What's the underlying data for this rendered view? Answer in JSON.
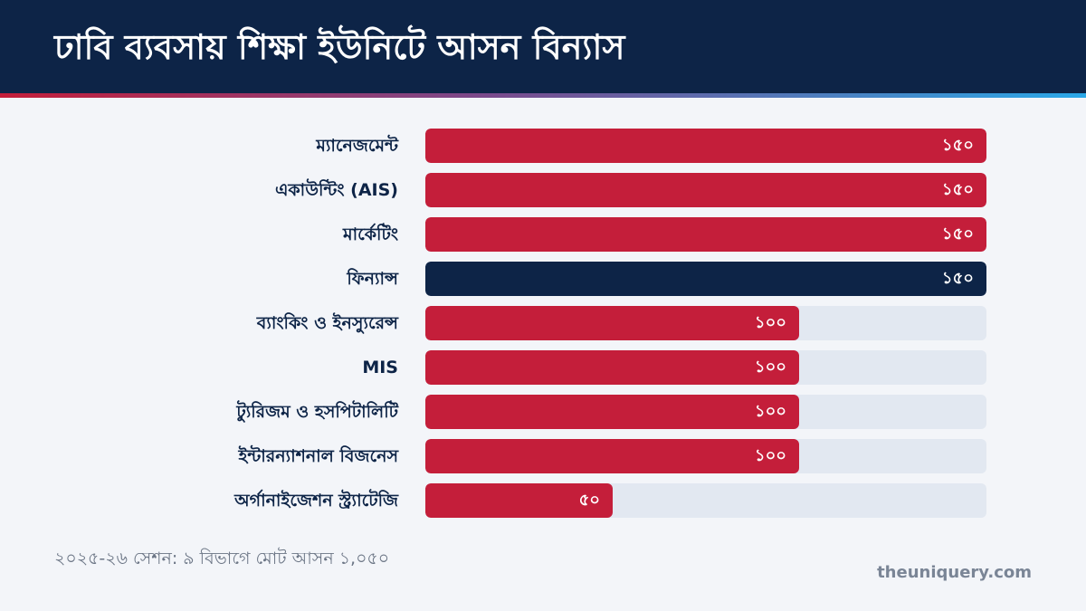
{
  "title": "ঢাবি ব্যবসায় শিক্ষা ইউনিটে আসন বিন্যাস",
  "colors": {
    "bar": "#c41e3a",
    "highlight": "#0d2447",
    "track": "#e2e8f1",
    "header": "#0d2447"
  },
  "chart_data": {
    "type": "bar",
    "orientation": "horizontal",
    "title": "ঢাবি ব্যবসায় শিক্ষা ইউনিটে আসন বিন্যাস",
    "xlim": [
      0,
      150
    ],
    "categories": [
      "ম্যানেজমেন্ট",
      "একাউন্টিং (AIS)",
      "মার্কেটিং",
      "ফিন্যান্স",
      "ব্যাংকিং ও ইনস্যুরেন্স",
      "MIS",
      "ট্যুরিজম ও হসপিটালিটি",
      "ইন্টারন্যাশনাল বিজনেস",
      "অর্গানাইজেশন স্ট্র্যাটেজি"
    ],
    "values": [
      150,
      150,
      150,
      150,
      100,
      100,
      100,
      100,
      50
    ],
    "value_labels": [
      "১৫০",
      "১৫০",
      "১৫০",
      "১৫০",
      "১০০",
      "১০০",
      "১০০",
      "১০০",
      "৫০"
    ],
    "highlight_category": "ফিন্যান্স"
  },
  "footnote": "২০২৫-২৬ সেশন: ৯ বিভাগে মোট আসন ১,০৫০",
  "brand": "theuniquery.com"
}
